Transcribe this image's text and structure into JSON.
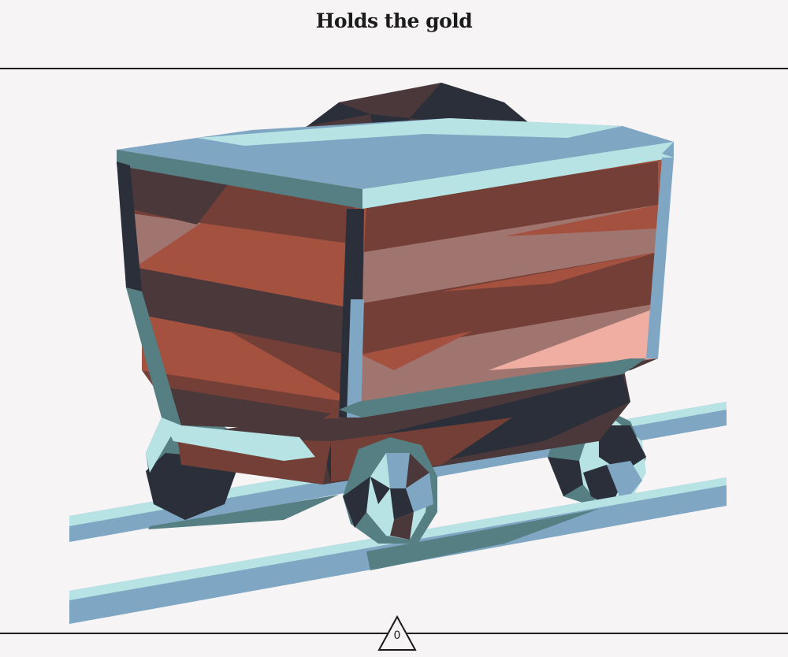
{
  "header": {
    "title": "Holds the gold"
  },
  "counter": {
    "value": "0",
    "icon": "triangle-icon"
  },
  "scene": {
    "subject": "mine-cart-icon"
  },
  "colors": {
    "background": "#f6f4f5",
    "rim_light": "#b7e3e4",
    "rim_mid": "#7fa6c2",
    "rim_dark": "#567f84",
    "wood_red": "#a4513f",
    "wood_dark": "#733f36",
    "wood_brown": "#4a383a",
    "coal": "#2b2f39",
    "highlight": "#f0aea2",
    "rail": "#7fa6c2"
  }
}
